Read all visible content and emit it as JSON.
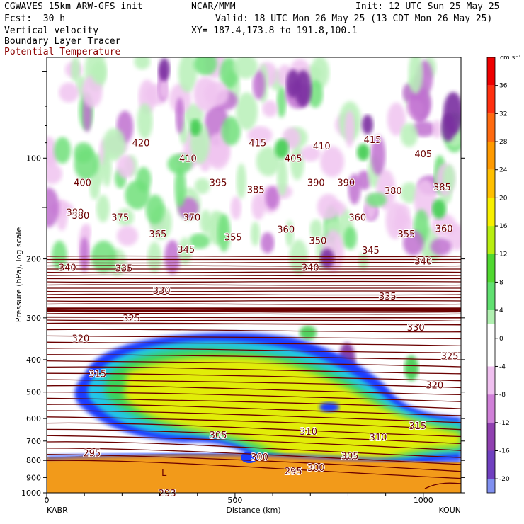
{
  "header": {
    "model": "CGWAVES 15km ARW-GFS init",
    "fcst_label": "Fcst:",
    "fcst_value": "30 h",
    "center": "NCAR/MMM",
    "init": "Init: 12 UTC Sun 25 May 25",
    "valid": "Valid: 18 UTC Mon 26 May 25 (13 CDT Mon 26 May 25)",
    "xy": "XY= 187.4,173.8 to 191.8,100.1",
    "field1": "Vertical velocity",
    "field2": "Boundary Layer Tracer",
    "field3": "Potential Temperature"
  },
  "colors": {
    "theta_contour": "#6b0000",
    "theta_label": "#8b0000",
    "tracer_blue": "#1a3cff",
    "tracer_cyan": "#22c6e8",
    "tracer_green": "#3bd35a",
    "tracer_yellow": "#f4f000",
    "tracer_orange": "#f29a1a",
    "w_up_light": "#b8f0b8",
    "w_up": "#6fe07a",
    "w_down_light": "#f0c4f0",
    "w_down": "#c070d0",
    "w_down_dark": "#7a2ea0"
  },
  "chart_data": {
    "type": "heatmap",
    "ylabel": "Pressure (hPa), log scale",
    "xlabel": "Distance (km)",
    "x_start_label": "KABR",
    "x_end_label": "KOUN",
    "xlim": [
      0,
      1100
    ],
    "x_ticks": [
      0,
      500,
      1000
    ],
    "y_scale": "log",
    "ylim": [
      1000,
      50
    ],
    "y_ticks": [
      100,
      200,
      300,
      400,
      500,
      600,
      700,
      800,
      900,
      1000
    ],
    "colorbar": {
      "unit": "cm s⁻¹",
      "ticks": [
        36,
        32,
        28,
        24,
        20,
        16,
        12,
        8,
        4,
        0,
        -4,
        -8,
        -12,
        -16,
        -20
      ],
      "min": -22,
      "max": 40,
      "stops": [
        {
          "v": 40,
          "c": "#ee0000"
        },
        {
          "v": 36,
          "c": "#ff3010"
        },
        {
          "v": 32,
          "c": "#ff6a10"
        },
        {
          "v": 28,
          "c": "#ff9a00"
        },
        {
          "v": 24,
          "c": "#ffc000"
        },
        {
          "v": 20,
          "c": "#f8f000"
        },
        {
          "v": 16,
          "c": "#b8ee10"
        },
        {
          "v": 12,
          "c": "#50d830"
        },
        {
          "v": 8,
          "c": "#60e070"
        },
        {
          "v": 4,
          "c": "#b0f0b0"
        },
        {
          "v": 2,
          "c": "#ffffff"
        },
        {
          "v": -2,
          "c": "#ffffff"
        },
        {
          "v": -4,
          "c": "#f0c0f0"
        },
        {
          "v": -8,
          "c": "#d080d8"
        },
        {
          "v": -12,
          "c": "#9040b0"
        },
        {
          "v": -16,
          "c": "#7040c0"
        },
        {
          "v": -20,
          "c": "#8090f0"
        }
      ]
    },
    "theta_labels": [
      {
        "text": "420",
        "x": 250,
        "p": 90
      },
      {
        "text": "410",
        "x": 375,
        "p": 100
      },
      {
        "text": "415",
        "x": 560,
        "p": 90
      },
      {
        "text": "405",
        "x": 655,
        "p": 100
      },
      {
        "text": "410",
        "x": 730,
        "p": 92
      },
      {
        "text": "415",
        "x": 865,
        "p": 88
      },
      {
        "text": "405",
        "x": 1000,
        "p": 97
      },
      {
        "text": "400",
        "x": 95,
        "p": 118
      },
      {
        "text": "395",
        "x": 455,
        "p": 118
      },
      {
        "text": "385",
        "x": 555,
        "p": 124
      },
      {
        "text": "390",
        "x": 715,
        "p": 118
      },
      {
        "text": "390",
        "x": 795,
        "p": 118
      },
      {
        "text": "380",
        "x": 920,
        "p": 125
      },
      {
        "text": "385",
        "x": 1050,
        "p": 122
      },
      {
        "text": "380",
        "x": 75,
        "p": 145
      },
      {
        "text": "380",
        "x": 90,
        "p": 148
      },
      {
        "text": "375",
        "x": 195,
        "p": 150
      },
      {
        "text": "370",
        "x": 385,
        "p": 150
      },
      {
        "text": "365",
        "x": 295,
        "p": 168
      },
      {
        "text": "355",
        "x": 495,
        "p": 172
      },
      {
        "text": "360",
        "x": 635,
        "p": 163
      },
      {
        "text": "360",
        "x": 825,
        "p": 150
      },
      {
        "text": "350",
        "x": 720,
        "p": 176
      },
      {
        "text": "355",
        "x": 955,
        "p": 168
      },
      {
        "text": "360",
        "x": 1055,
        "p": 162
      },
      {
        "text": "345",
        "x": 370,
        "p": 187
      },
      {
        "text": "345",
        "x": 860,
        "p": 188
      },
      {
        "text": "340",
        "x": 55,
        "p": 212
      },
      {
        "text": "340",
        "x": 700,
        "p": 212
      },
      {
        "text": "340",
        "x": 1000,
        "p": 203
      },
      {
        "text": "335",
        "x": 205,
        "p": 213
      },
      {
        "text": "335",
        "x": 905,
        "p": 258
      },
      {
        "text": "330",
        "x": 305,
        "p": 248
      },
      {
        "text": "330",
        "x": 980,
        "p": 320
      },
      {
        "text": "325",
        "x": 225,
        "p": 300
      },
      {
        "text": "325",
        "x": 1070,
        "p": 390
      },
      {
        "text": "320",
        "x": 90,
        "p": 345
      },
      {
        "text": "320",
        "x": 1030,
        "p": 476
      },
      {
        "text": "315",
        "x": 135,
        "p": 440
      },
      {
        "text": "315",
        "x": 985,
        "p": 630
      },
      {
        "text": "310",
        "x": 695,
        "p": 655
      },
      {
        "text": "310",
        "x": 880,
        "p": 680
      },
      {
        "text": "305",
        "x": 455,
        "p": 670
      },
      {
        "text": "305",
        "x": 805,
        "p": 775
      },
      {
        "text": "300",
        "x": 565,
        "p": 780
      },
      {
        "text": "300",
        "x": 715,
        "p": 840
      },
      {
        "text": "295",
        "x": 120,
        "p": 760
      },
      {
        "text": "295",
        "x": 655,
        "p": 860
      },
      {
        "text": "293",
        "x": 320,
        "p": 1000
      }
    ]
  }
}
